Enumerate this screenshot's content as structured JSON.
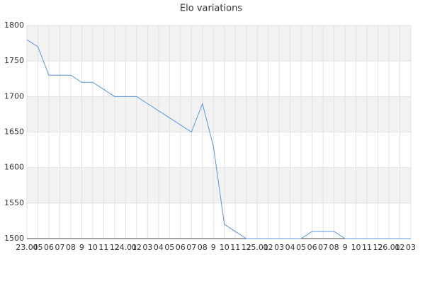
{
  "chart_data": {
    "type": "line",
    "title": "Elo variations",
    "categories": [
      "23.04",
      "05",
      "06",
      "07",
      "08",
      "9",
      "10",
      "11",
      "12",
      "24.01",
      "02",
      "03",
      "04",
      "05",
      "06",
      "07",
      "08",
      "9",
      "10",
      "11",
      "12",
      "25.01",
      "02",
      "03",
      "04",
      "05",
      "06",
      "07",
      "08",
      "9",
      "10",
      "11",
      "12",
      "26.01",
      "02",
      "03"
    ],
    "values": [
      1780,
      1770,
      1730,
      1730,
      1730,
      1720,
      1720,
      1710,
      1700,
      1700,
      1700,
      1690,
      1680,
      1670,
      1660,
      1650,
      1690,
      1630,
      1520,
      1510,
      1500,
      1500,
      1500,
      1500,
      1500,
      1500,
      1510,
      1510,
      1510,
      1500,
      1500,
      1500,
      1500,
      1500,
      1500,
      1500
    ],
    "color": "#5b94dd",
    "ylim": [
      1500,
      1800
    ],
    "yticks": [
      1500,
      1550,
      1600,
      1650,
      1700,
      1750,
      1800
    ],
    "grid": true,
    "band_color": "#f2f2f2"
  }
}
